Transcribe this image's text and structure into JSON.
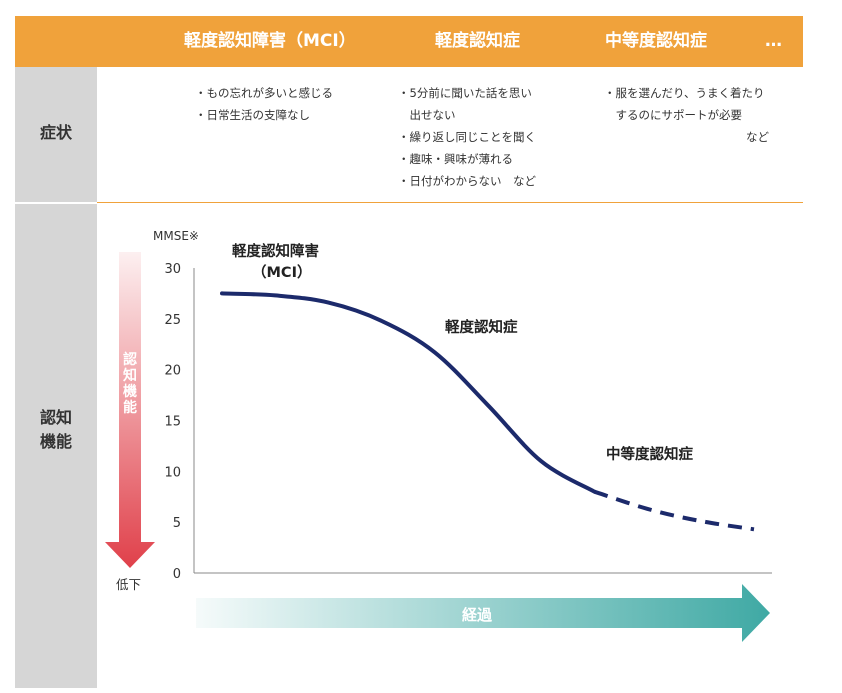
{
  "header": {
    "stages": [
      {
        "label": "軽度認知障害（MCI）"
      },
      {
        "label": "軽度認知症"
      },
      {
        "label": "中等度認知症"
      },
      {
        "label": "…"
      }
    ]
  },
  "rows": {
    "symptoms_label": "症状",
    "cognition_label": [
      "認知",
      "機能"
    ]
  },
  "symptoms": {
    "mci": [
      "・もの忘れが多いと感じる",
      "・日常生活の支障なし"
    ],
    "mild": [
      "・5分前に聞いた話を思い",
      "　出せない",
      "・繰り返し同じことを聞く",
      "・趣味・興味が薄れる",
      "・日付がわからない　など"
    ],
    "moderate": [
      "・服を選んだり、うまく着たり",
      "　するのにサポートが必要",
      "など"
    ]
  },
  "colors": {
    "header": "#f0a23b",
    "side_column": "#d6d6d6",
    "curve": "#1c2a6b",
    "decline_arrow": "#e0404a",
    "time_arrow": "#3fa9a4"
  },
  "chart_data": {
    "type": "line",
    "title": "",
    "ylabel": "MMSE※",
    "xlabel": "経過",
    "ylim": [
      0,
      30
    ],
    "yticks": [
      "0",
      "5",
      "10",
      "15",
      "20",
      "25",
      "30"
    ],
    "x": [
      0,
      10,
      20,
      30,
      40,
      50,
      60,
      70,
      80,
      90,
      100
    ],
    "y": [
      27.5,
      27.3,
      26.6,
      24.8,
      21.7,
      16.5,
      11.0,
      8.0,
      6.3,
      5.1,
      4.3
    ],
    "solid_until_x": 70,
    "line_style_after": "dashed",
    "annotations": [
      {
        "line1": "軽度認知障害",
        "line2": "（MCI）"
      },
      {
        "text": "軽度認知症"
      },
      {
        "text": "中等度認知症"
      }
    ],
    "decline_arrow_text": [
      "認",
      "知",
      "機",
      "能"
    ],
    "decline_label": "低下"
  }
}
